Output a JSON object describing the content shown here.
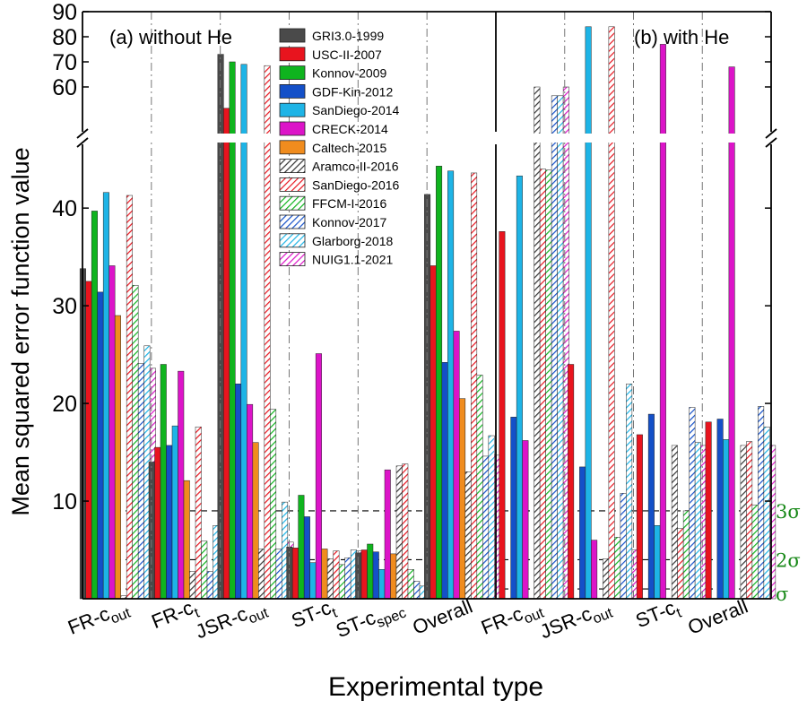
{
  "chart_data": {
    "type": "bar",
    "xlabel": "Experimental type",
    "ylabel": "Mean squared error function value",
    "panels": [
      {
        "label": "(a) without He",
        "groups": [
          {
            "base": "FR-c",
            "sub": "out",
            "values": [
              33.8,
              32.5,
              39.7,
              31.4,
              41.6,
              34.1,
              29.0,
              0.3,
              41.3,
              32.1,
              24.1,
              25.9,
              23.6
            ]
          },
          {
            "base": "FR-c",
            "sub": "t",
            "values": [
              14.0,
              15.5,
              24.0,
              15.7,
              17.7,
              23.3,
              12.1,
              2.8,
              17.6,
              5.9,
              2.8,
              7.5,
              16.1
            ]
          },
          {
            "base": "JSR-c",
            "sub": "out",
            "values": [
              73.0,
              51.5,
              70.0,
              22.0,
              69.0,
              19.9,
              16.0,
              5.1,
              68.5,
              19.4,
              5.1,
              9.9,
              5.8
            ]
          },
          {
            "base": "ST-c",
            "sub": "t",
            "values": [
              5.3,
              5.2,
              10.6,
              8.4,
              3.7,
              25.1,
              5.1,
              4.1,
              4.9,
              3.5,
              4.2,
              5.0,
              4.9
            ]
          },
          {
            "base": "ST-c",
            "sub": "spec",
            "values": [
              4.7,
              5.0,
              5.6,
              4.8,
              3.0,
              13.2,
              4.6,
              13.6,
              13.8,
              3.0,
              1.8,
              1.3,
              3.8
            ]
          },
          {
            "base": "Overall",
            "sub": "",
            "values": [
              41.4,
              34.1,
              44.3,
              24.2,
              43.8,
              27.4,
              20.5,
              13.0,
              43.6,
              22.9,
              14.6,
              16.7,
              14.7
            ]
          }
        ]
      },
      {
        "label": "(b) with He",
        "groups": [
          {
            "base": "FR-c",
            "sub": "out",
            "values": [
              null,
              37.6,
              null,
              18.6,
              43.3,
              16.2,
              null,
              60.0,
              44.0,
              43.9,
              56.5,
              56.5,
              60.0
            ]
          },
          {
            "base": "JSR-c",
            "sub": "out",
            "values": [
              null,
              24.0,
              null,
              13.5,
              84.0,
              6.0,
              null,
              4.1,
              84.0,
              6.3,
              10.8,
              22.0,
              5.0
            ]
          },
          {
            "base": "ST-c",
            "sub": "t",
            "values": [
              null,
              16.8,
              null,
              18.9,
              7.5,
              77.0,
              null,
              15.7,
              7.2,
              9.0,
              19.6,
              16.0,
              15.7
            ]
          },
          {
            "base": "Overall",
            "sub": "",
            "values": [
              null,
              18.1,
              null,
              18.4,
              16.3,
              68.0,
              null,
              15.7,
              16.1,
              9.6,
              19.7,
              17.6,
              15.7
            ]
          }
        ]
      }
    ],
    "series": [
      {
        "name": "GRI3.0-1999",
        "color": "#4a4a4a",
        "pattern": "solid"
      },
      {
        "name": "USC-II-2007",
        "color": "#e8141e",
        "pattern": "solid"
      },
      {
        "name": "Konnov-2009",
        "color": "#0fb41e",
        "pattern": "solid"
      },
      {
        "name": "GDF-Kin-2012",
        "color": "#1450c8",
        "pattern": "solid"
      },
      {
        "name": "SanDiego-2014",
        "color": "#1eb4e6",
        "pattern": "solid"
      },
      {
        "name": "CRECK-2014",
        "color": "#dc14c8",
        "pattern": "solid"
      },
      {
        "name": "Caltech-2015",
        "color": "#f08c1e",
        "pattern": "solid"
      },
      {
        "name": "Aramco-II-2016",
        "color": "#333333",
        "pattern": "hatch"
      },
      {
        "name": "SanDiego-2016",
        "color": "#e8141e",
        "pattern": "hatch"
      },
      {
        "name": "FFCM-I-2016",
        "color": "#0fb41e",
        "pattern": "hatch"
      },
      {
        "name": "Konnov-2017",
        "color": "#1450c8",
        "pattern": "hatch"
      },
      {
        "name": "Glarborg-2018",
        "color": "#1eb4e6",
        "pattern": "hatch"
      },
      {
        "name": "NUIG1.1-2021",
        "color": "#dc14c8",
        "pattern": "hatch"
      }
    ],
    "y_axis": {
      "lower_range": [
        0,
        48
      ],
      "lower_ticks": [
        10,
        20,
        30,
        40
      ],
      "upper_range": [
        50,
        90
      ],
      "upper_ticks": [
        60,
        70,
        80,
        90
      ],
      "broken": true
    },
    "reference_lines": [
      {
        "value": 1,
        "label": "σ",
        "color": "#1a8a1a"
      },
      {
        "value": 4,
        "label": "2σ",
        "color": "#1a8a1a"
      },
      {
        "value": 9,
        "label": "3σ",
        "color": "#1a8a1a"
      }
    ],
    "legend_position": "top-center"
  }
}
